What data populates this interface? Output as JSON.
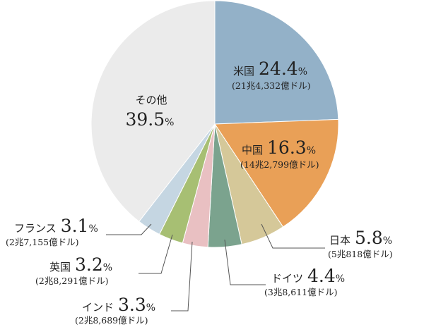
{
  "chart_data": {
    "type": "pie",
    "slices": [
      {
        "name": "米国",
        "value": 24.4,
        "amount": "(21兆4,332億ドル)",
        "color": "#93b1c8"
      },
      {
        "name": "中国",
        "value": 16.3,
        "amount": "(14兆2,799億ドル)",
        "color": "#e9a057"
      },
      {
        "name": "日本",
        "value": 5.8,
        "amount": "(5兆818億ドル)",
        "color": "#d5c899"
      },
      {
        "name": "ドイツ",
        "value": 4.4,
        "amount": "(3兆8,611億ドル)",
        "color": "#7ba38e"
      },
      {
        "name": "インド",
        "value": 3.3,
        "amount": "(2兆8,689億ドル)",
        "color": "#e9c0c2"
      },
      {
        "name": "英国",
        "value": 3.2,
        "amount": "(2兆8,291億ドル)",
        "color": "#a7bf73"
      },
      {
        "name": "フランス",
        "value": 3.1,
        "amount": "(2兆7,155億ドル)",
        "color": "#c5d6e2"
      },
      {
        "name": "その他",
        "value": 39.5,
        "amount": "",
        "color": "#ebebeb"
      }
    ],
    "percent_unit": "%"
  }
}
